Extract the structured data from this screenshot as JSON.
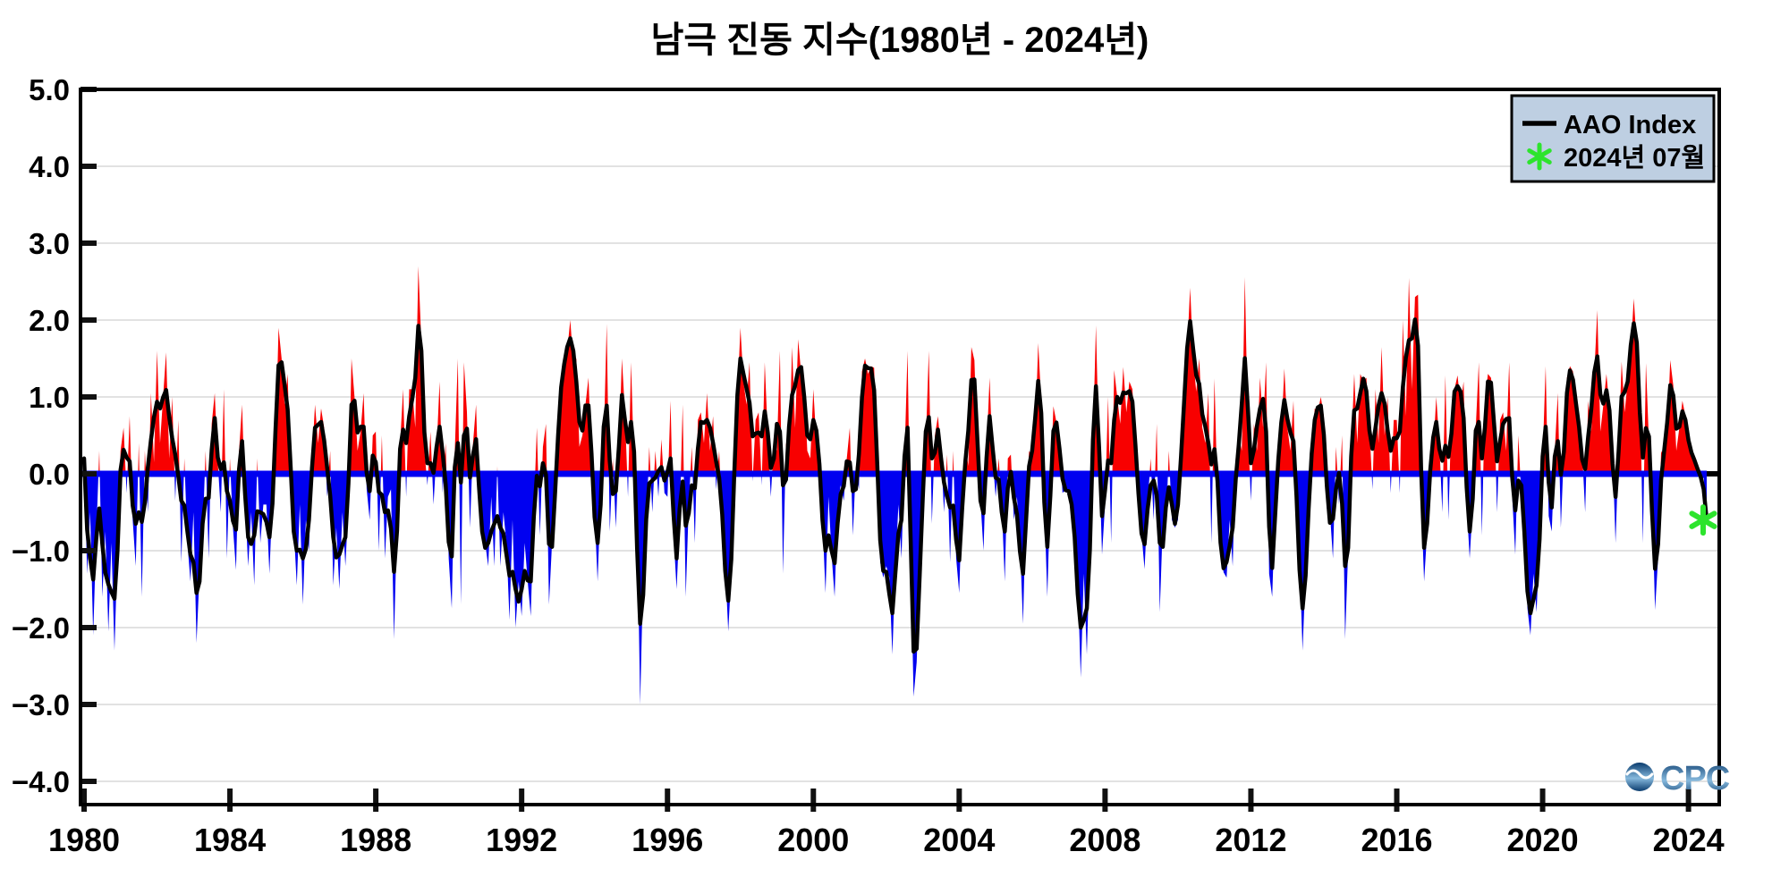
{
  "title": "남극 진동 지수(1980년 - 2024년)",
  "legend": {
    "line_label": "AAO Index",
    "marker_label": "2024년 07월"
  },
  "watermark": "CPC",
  "colors": {
    "positive": "#f80000",
    "negative": "#0000f0",
    "line": "#000000",
    "marker_green": "#2de42d",
    "legend_bg": "#becfe2",
    "grid": "#d9d9d9",
    "axis": "#000000",
    "logo_dark": "#0b3c6e",
    "logo_light": "#86b9dd"
  },
  "chart_data": {
    "type": "area",
    "title": "남극 진동 지수(1980년 - 2024년)",
    "xlabel": "",
    "ylabel": "",
    "series_name": "AAO Index",
    "start_year": 1980,
    "start_month": 1,
    "end_year": 2024,
    "end_month": 7,
    "ylim": [
      -4.3,
      5.0
    ],
    "yticks": [
      5,
      4,
      3,
      2,
      1,
      0,
      -1,
      -2,
      -3,
      -4
    ],
    "xticks": [
      1980,
      1984,
      1988,
      1992,
      1996,
      2000,
      2004,
      2008,
      2012,
      2016,
      2020,
      2024
    ],
    "grid": "horizontal-light",
    "legend_position": "top-right",
    "smoothing": "1-2-1 weighted running mean drawn as black line",
    "highlight": {
      "label": "2024년 07월",
      "month": "2024-07",
      "value": -0.6
    },
    "monthly_values": [
      0.2,
      -1.3,
      -0.5,
      -2.1,
      -0.8,
      0.3,
      -1.6,
      -0.75,
      -2.05,
      -0.9,
      -2.3,
      -1.0,
      0.3,
      0.6,
      -0.25,
      0.75,
      -0.6,
      -1.2,
      0.4,
      -1.6,
      0.3,
      -0.5,
      1.05,
      0.15,
      1.6,
      0.4,
      1.0,
      1.58,
      0.2,
      1.0,
      -0.35,
      0.7,
      -1.15,
      0.2,
      -0.9,
      -1.4,
      -0.5,
      -2.2,
      -1.3,
      -0.8,
      0.3,
      -1.1,
      0.65,
      1.05,
      0.15,
      -0.5,
      1.1,
      -1.1,
      0.2,
      -0.7,
      -1.25,
      0.3,
      0.9,
      -0.4,
      -1.2,
      -0.5,
      -1.45,
      0.2,
      -0.9,
      -0.4,
      -0.4,
      -1.3,
      -0.3,
      0.35,
      1.9,
      1.5,
      0.9,
      1.3,
      -0.15,
      -0.7,
      -1.45,
      -0.4,
      -1.7,
      -0.6,
      -1.0,
      0.2,
      0.9,
      0.4,
      0.85,
      0.6,
      -0.3,
      0.3,
      -1.45,
      -0.7,
      -1.5,
      -0.5,
      -1.2,
      -0.4,
      1.5,
      1.0,
      0.3,
      0.55,
      1.05,
      -0.2,
      -0.6,
      0.5,
      0.55,
      -1.0,
      0.5,
      -1.1,
      -0.3,
      -0.2,
      -2.15,
      -0.6,
      0.4,
      1.1,
      -0.3,
      1.1,
      1.1,
      0.6,
      2.7,
      1.7,
      0.3,
      -0.15,
      0.55,
      -0.4,
      0.3,
      1.2,
      -0.25,
      0.4,
      -1.1,
      -1.75,
      0.3,
      1.5,
      -1.7,
      1.45,
      0.8,
      -0.7,
      0.4,
      0.9,
      -0.4,
      -0.85,
      -0.9,
      -1.2,
      -0.3,
      -1.2,
      0.1,
      -1.2,
      -0.5,
      -0.9,
      -1.9,
      -0.6,
      -2.0,
      -1.4,
      -1.85,
      -0.9,
      -1.4,
      -1.85,
      -0.5,
      0.6,
      -0.8,
      0.35,
      0.65,
      -1.7,
      -0.9,
      -0.3,
      0.5,
      1.3,
      1.4,
      1.6,
      2.0,
      1.45,
      1.5,
      0.35,
      0.5,
      0.9,
      1.25,
      0.15,
      -0.5,
      -1.4,
      -0.3,
      0.4,
      1.95,
      -0.75,
      0.2,
      -0.7,
      0.3,
      1.5,
      0.8,
      -0.3,
      1.45,
      0.1,
      -0.5,
      -3.0,
      -1.3,
      -0.7,
      0.35,
      -0.5,
      0.3,
      -0.3,
      0.45,
      -0.25,
      -0.3,
      0.95,
      -0.8,
      -1.5,
      -0.6,
      0.9,
      -1.6,
      -0.4,
      0.35,
      -0.9,
      0.7,
      0.8,
      0.4,
      1.05,
      0.3,
      0.75,
      -0.2,
      0.3,
      -0.6,
      -1.2,
      -2.05,
      -1.3,
      0.2,
      1.0,
      1.9,
      1.2,
      0.9,
      1.45,
      -0.1,
      0.7,
      0.8,
      -0.15,
      1.45,
      0.5,
      -0.3,
      0.4,
      0.3,
      1.6,
      -1.3,
      0.4,
      0.2,
      1.65,
      0.6,
      1.75,
      1.3,
      1.2,
      0.3,
      0.2,
      1.1,
      0.4,
      0.35,
      -0.6,
      -1.55,
      -0.3,
      -1.05,
      -1.6,
      -0.4,
      -0.15,
      -0.35,
      0.2,
      0.6,
      -0.8,
      0.1,
      -0.2,
      1.33,
      1.5,
      1.3,
      1.4,
      1.38,
      0.2,
      -1.15,
      -1.35,
      -1.2,
      -1.35,
      -2.35,
      -1.2,
      -0.4,
      -1.1,
      0.2,
      1.6,
      -1.0,
      -2.9,
      -2.45,
      -1.3,
      -0.2,
      0.4,
      1.6,
      -0.65,
      0.5,
      0.75,
      0.3,
      -0.5,
      0.25,
      -1.15,
      0.3,
      -1.1,
      -1.55,
      -0.3,
      0.4,
      0.1,
      1.65,
      1.48,
      0.3,
      -0.35,
      -1.0,
      0.3,
      1.25,
      0.2,
      -0.3,
      0.2,
      -0.4,
      -1.4,
      0.2,
      0.25,
      -0.6,
      -0.3,
      -0.9,
      -1.95,
      -0.4,
      0.3,
      0.2,
      0.5,
      1.7,
      0.93,
      -0.4,
      -1.6,
      -0.2,
      0.88,
      0.67,
      0.45,
      -0.25,
      -0.2,
      -0.2,
      -0.3,
      -0.8,
      -1.4,
      -2.65,
      -1.3,
      -2.35,
      -1.0,
      0.4,
      1.93,
      0.3,
      -1.05,
      -0.4,
      1.0,
      -0.9,
      1.35,
      1.0,
      0.65,
      1.39,
      0.8,
      1.2,
      1.1,
      0.35,
      -0.3,
      -0.78,
      -1.24,
      -0.4,
      0.2,
      -0.6,
      0.65,
      -1.8,
      -0.65,
      -0.7,
      0.3,
      -0.6,
      -0.7,
      -0.6,
      0.3,
      0.9,
      1.6,
      2.42,
      1.5,
      1.07,
      1.5,
      0.6,
      0.4,
      1.05,
      -0.9,
      1.24,
      -0.3,
      -1.0,
      -1.28,
      -1.35,
      -0.6,
      -1.2,
      0.2,
      0.5,
      0.3,
      2.56,
      0.6,
      -0.35,
      0.65,
      0.3,
      1.25,
      0.6,
      1.45,
      -1.3,
      -1.6,
      -0.4,
      0.3,
      0.5,
      1.37,
      0.6,
      0.3,
      0.95,
      -0.5,
      -1.1,
      -2.3,
      -1.3,
      -0.4,
      0.3,
      0.85,
      0.8,
      1.0,
      0.75,
      -0.45,
      -0.5,
      -1.1,
      0.35,
      -0.4,
      0.5,
      -2.15,
      -1.0,
      0.3,
      1.3,
      0.4,
      1.3,
      1.2,
      1.25,
      0.6,
      -0.2,
      1.1,
      0.4,
      1.65,
      0.5,
      1.0,
      -0.25,
      0.7,
      0.7,
      -0.25,
      2.0,
      0.75,
      2.55,
      1.1,
      2.3,
      2.33,
      -0.3,
      -1.4,
      -0.75,
      0.3,
      0.3,
      1.0,
      0.4,
      -0.5,
      1.28,
      -0.6,
      0.8,
      1.1,
      1.28,
      0.9,
      1.2,
      -0.4,
      -1.1,
      -0.4,
      0.6,
      1.45,
      -0.8,
      0.95,
      1.3,
      1.25,
      0.95,
      -0.5,
      0.7,
      0.8,
      0.3,
      1.45,
      -0.3,
      -1.05,
      0.5,
      -0.3,
      -0.5,
      -1.75,
      -2.1,
      -1.3,
      -1.8,
      -0.9,
      0.2,
      1.4,
      -0.55,
      -0.75,
      0.3,
      1.05,
      -0.7,
      0.3,
      1.25,
      1.4,
      1.33,
      0.83,
      0.65,
      0.3,
      -0.5,
      0.95,
      0.55,
      1.3,
      2.13,
      0.55,
      0.9,
      1.3,
      0.85,
      0.3,
      -0.9,
      0.3,
      1.46,
      0.8,
      1.2,
      1.6,
      2.28,
      1.67,
      1.2,
      -0.9,
      1.44,
      0.4,
      -0.3,
      -1.77,
      -1.1,
      0.3,
      0.2,
      0.5,
      1.48,
      1.15,
      0.3,
      0.6,
      0.95,
      0.75,
      0.35,
      0.3,
      0.15,
      0.1,
      -0.1,
      -0.05,
      -0.6
    ]
  }
}
